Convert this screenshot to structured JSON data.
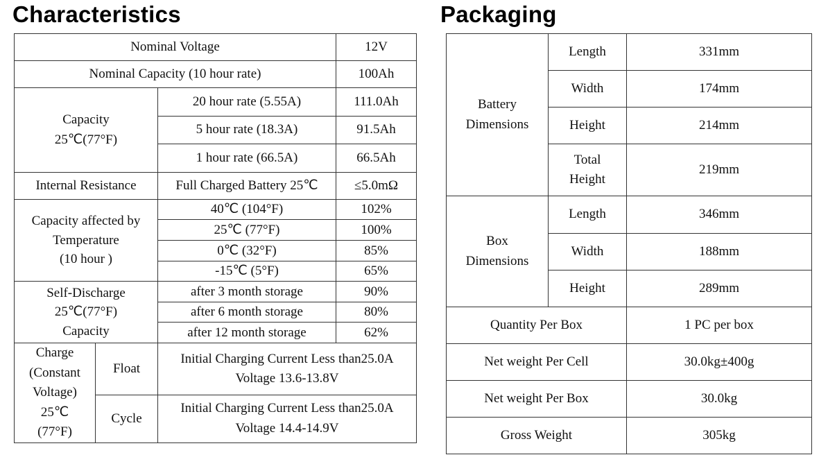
{
  "characteristics": {
    "title": "Characteristics",
    "nominal_voltage": {
      "label": "Nominal Voltage",
      "value": "12V"
    },
    "nominal_capacity": {
      "label": "Nominal Capacity (10 hour rate)",
      "value": "100Ah"
    },
    "capacity": {
      "label": [
        "Capacity",
        "25℃(77°F)"
      ],
      "rows": [
        {
          "condition": "20 hour rate (5.55A)",
          "value": "111.0Ah"
        },
        {
          "condition": "5 hour rate (18.3A)",
          "value": "91.5Ah"
        },
        {
          "condition": "1 hour rate (66.5A)",
          "value": "66.5Ah"
        }
      ]
    },
    "internal_resistance": {
      "label": "Internal Resistance",
      "condition": "Full Charged Battery 25℃",
      "value": "≤5.0mΩ"
    },
    "temperature": {
      "label": [
        "Capacity affected by",
        "Temperature",
        "(10 hour )"
      ],
      "rows": [
        {
          "condition": "40℃ (104°F)",
          "value": "102%"
        },
        {
          "condition": "25℃ (77°F)",
          "value": "100%"
        },
        {
          "condition": "0℃ (32°F)",
          "value": "85%"
        },
        {
          "condition": "-15℃ (5°F)",
          "value": "65%"
        }
      ]
    },
    "self_discharge": {
      "label": [
        "Self-Discharge",
        "25℃(77°F)",
        "Capacity"
      ],
      "rows": [
        {
          "condition": "after 3 month storage",
          "value": "90%"
        },
        {
          "condition": "after 6 month storage",
          "value": "80%"
        },
        {
          "condition": "after 12 month storage",
          "value": "62%"
        }
      ]
    },
    "charge": {
      "label": [
        "Charge",
        "(Constant",
        "Voltage)",
        "25℃",
        "(77°F)"
      ],
      "modes": [
        {
          "name": "Float",
          "lines": [
            "Initial Charging Current Less than25.0A",
            "Voltage 13.6-13.8V"
          ]
        },
        {
          "name": "Cycle",
          "lines": [
            "Initial Charging Current Less than25.0A",
            "Voltage 14.4-14.9V"
          ]
        }
      ]
    }
  },
  "packaging": {
    "title": "Packaging",
    "battery_dimensions": {
      "label": [
        "Battery",
        "Dimensions"
      ],
      "rows": [
        {
          "name": [
            "Length"
          ],
          "value": "331mm"
        },
        {
          "name": [
            "Width"
          ],
          "value": "174mm"
        },
        {
          "name": [
            "Height"
          ],
          "value": "214mm"
        },
        {
          "name": [
            "Total",
            "Height"
          ],
          "value": "219mm"
        }
      ]
    },
    "box_dimensions": {
      "label": [
        "Box",
        "Dimensions"
      ],
      "rows": [
        {
          "name": [
            "Length"
          ],
          "value": "346mm"
        },
        {
          "name": [
            "Width"
          ],
          "value": "188mm"
        },
        {
          "name": [
            "Height"
          ],
          "value": "289mm"
        }
      ]
    },
    "items": [
      {
        "label": "Quantity Per Box",
        "value": "1 PC per box"
      },
      {
        "label": "Net weight Per Cell",
        "value": "30.0kg±400g"
      },
      {
        "label": "Net weight Per Box",
        "value": "30.0kg"
      },
      {
        "label": "Gross Weight",
        "value": "305kg"
      }
    ]
  }
}
